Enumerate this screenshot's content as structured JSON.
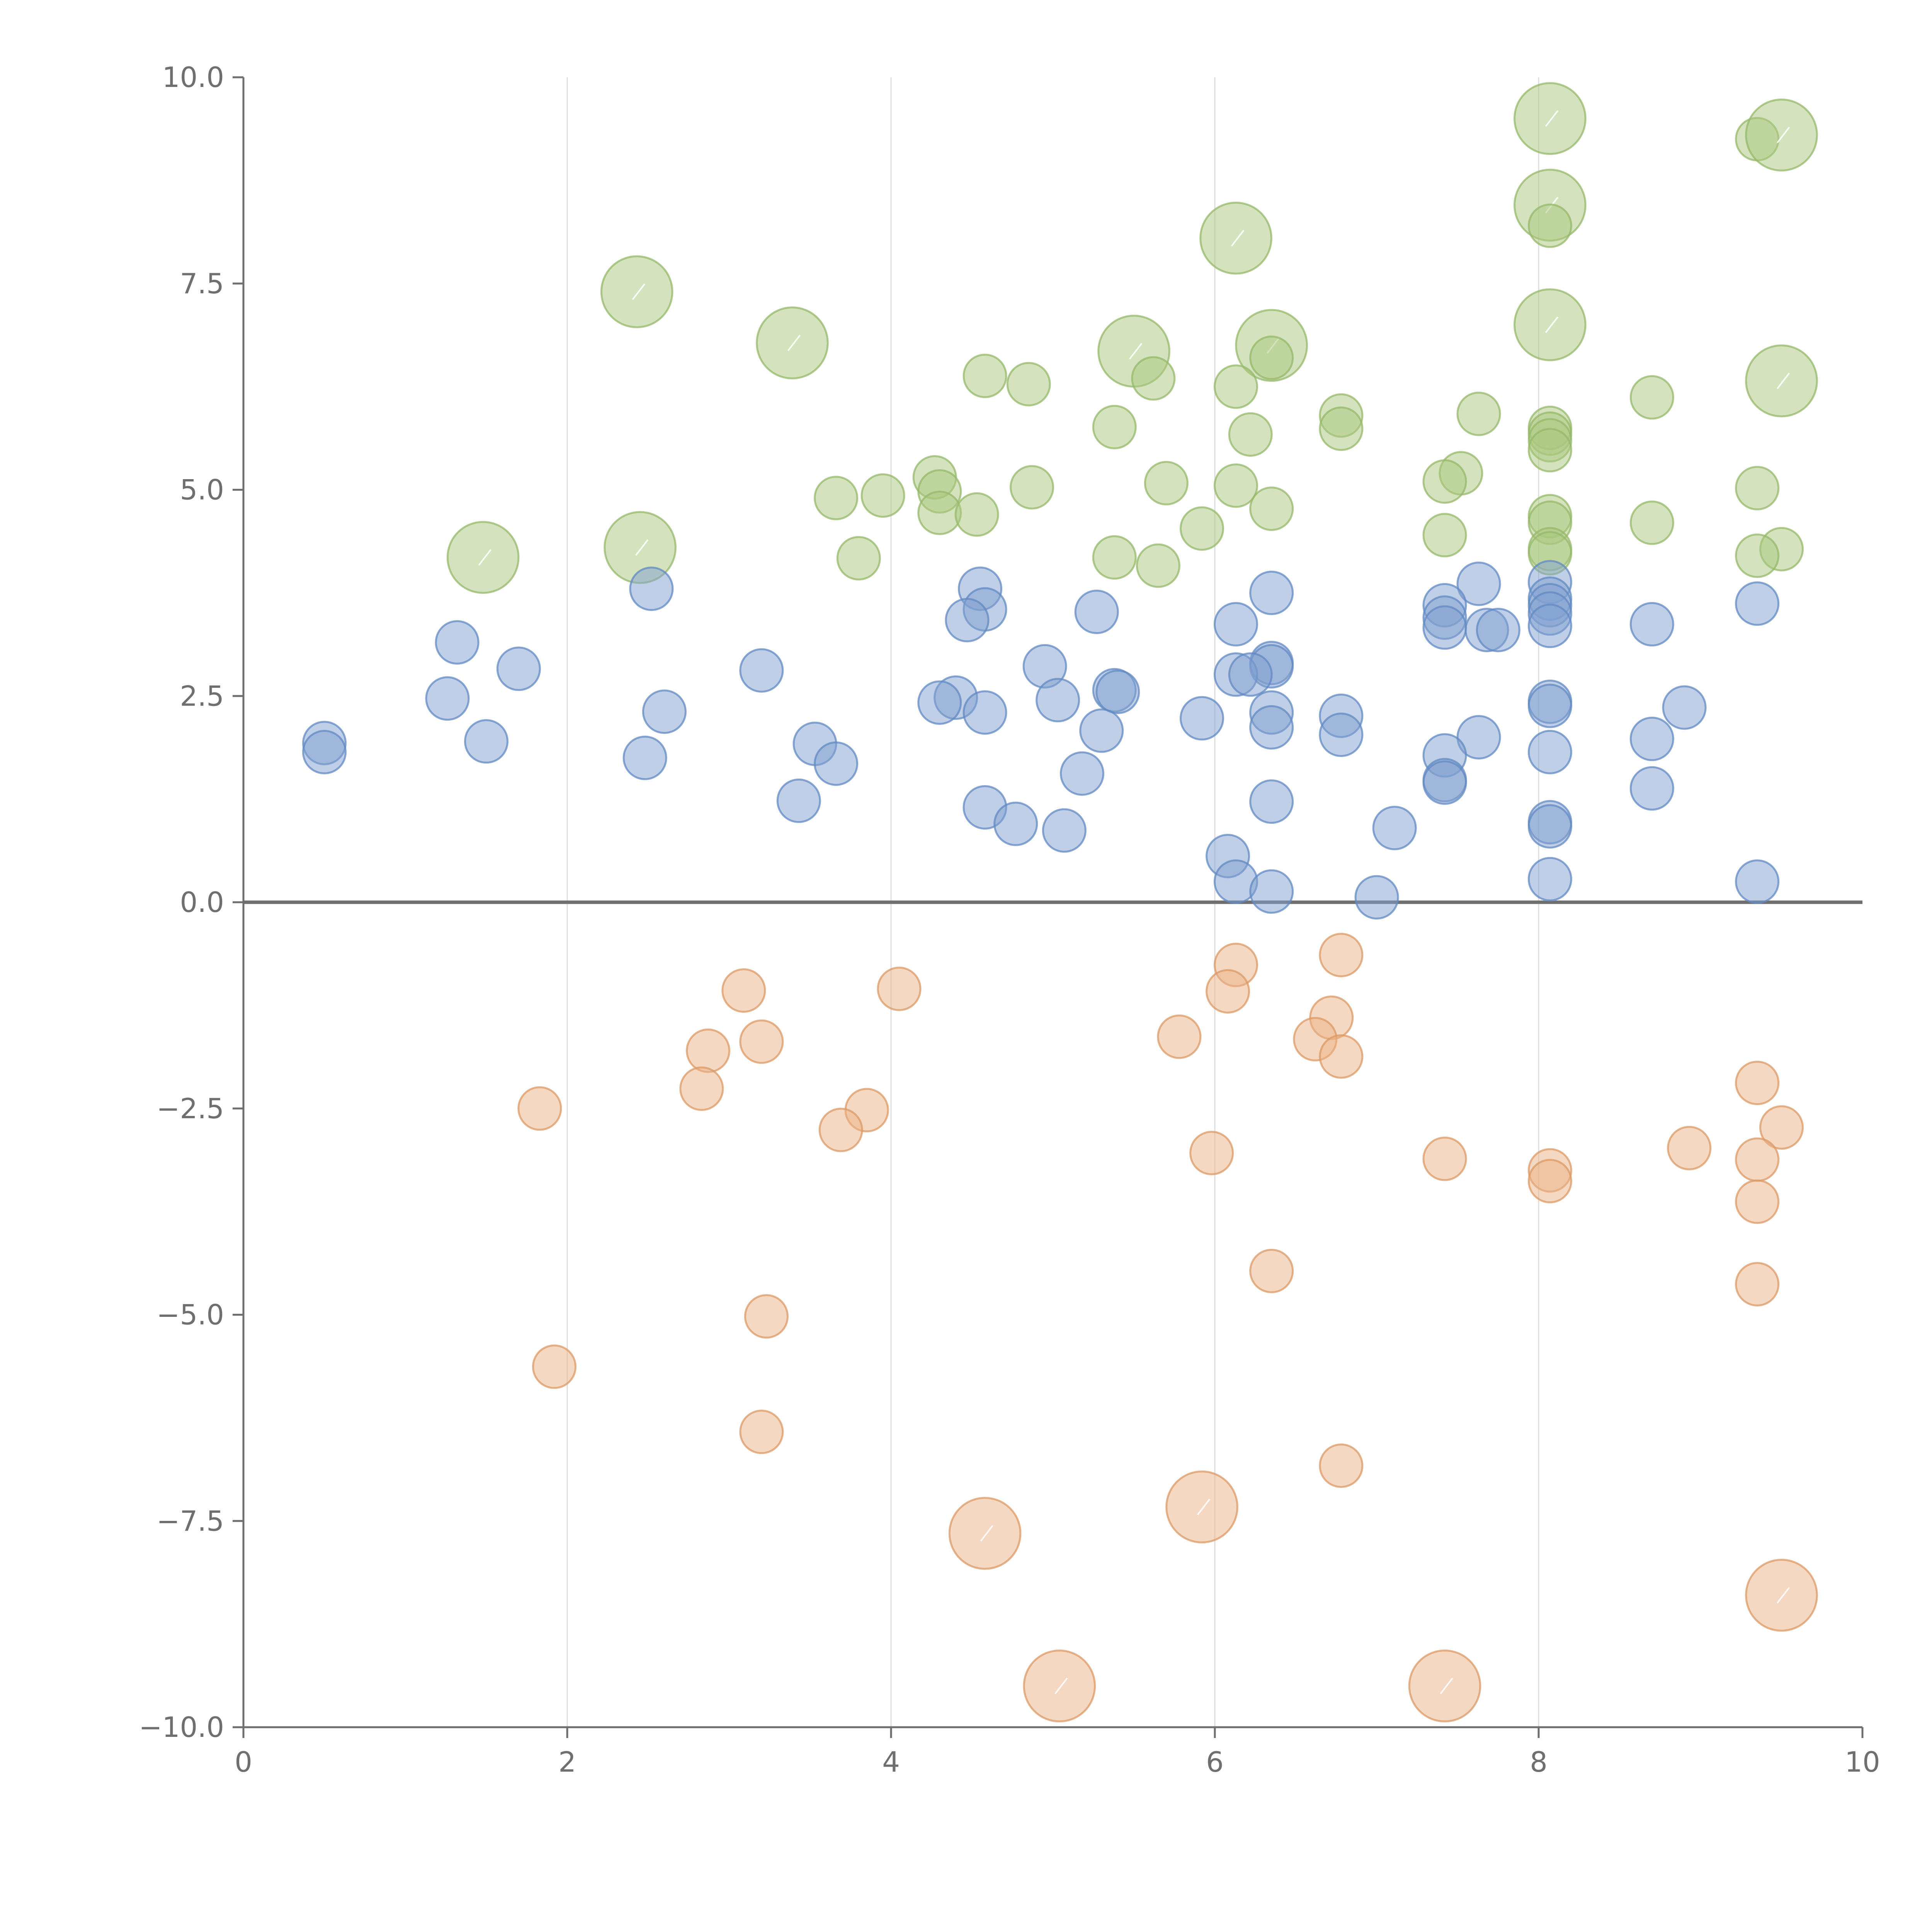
{
  "chart_data": {
    "type": "scatter",
    "title": "",
    "xlabel": "",
    "ylabel": "",
    "xlim": [
      0,
      10
    ],
    "ylim": [
      -10,
      10
    ],
    "grid": "vertical",
    "x_ticks": [
      {
        "value": 0,
        "label": "0"
      },
      {
        "value": 2,
        "label": "2"
      },
      {
        "value": 4,
        "label": "4"
      },
      {
        "value": 6,
        "label": "6"
      },
      {
        "value": 8,
        "label": "8"
      },
      {
        "value": 10,
        "label": "10"
      }
    ],
    "y_ticks": [
      {
        "value": 10,
        "label": "10.0"
      },
      {
        "value": 7.5,
        "label": "7.5"
      },
      {
        "value": 5,
        "label": "5.0"
      },
      {
        "value": 2.5,
        "label": "2.5"
      },
      {
        "value": 0,
        "label": "0.0"
      },
      {
        "value": -2.5,
        "label": "−2.5"
      },
      {
        "value": -5,
        "label": "−5.0"
      },
      {
        "value": -7.5,
        "label": "−7.5"
      },
      {
        "value": -10,
        "label": "−10.0"
      }
    ],
    "series": [
      {
        "name": "green",
        "color": "#a9c77e",
        "stroke": "#95b86a",
        "points": [
          {
            "x": 8.07,
            "y": 9.5,
            "size": 3
          },
          {
            "x": 9.35,
            "y": 9.25,
            "size": 1
          },
          {
            "x": 9.5,
            "y": 9.3,
            "size": 3
          },
          {
            "x": 8.07,
            "y": 8.45,
            "size": 3
          },
          {
            "x": 8.07,
            "y": 8.2,
            "size": 1
          },
          {
            "x": 6.13,
            "y": 8.05,
            "size": 3
          },
          {
            "x": 2.43,
            "y": 7.4,
            "size": 3
          },
          {
            "x": 8.07,
            "y": 7.0,
            "size": 3
          },
          {
            "x": 3.39,
            "y": 6.78,
            "size": 3
          },
          {
            "x": 6.35,
            "y": 6.75,
            "size": 3
          },
          {
            "x": 6.35,
            "y": 6.6,
            "size": 1
          },
          {
            "x": 5.5,
            "y": 6.68,
            "size": 3
          },
          {
            "x": 4.58,
            "y": 6.38,
            "size": 1
          },
          {
            "x": 5.62,
            "y": 6.35,
            "size": 1
          },
          {
            "x": 9.5,
            "y": 6.32,
            "size": 3
          },
          {
            "x": 4.85,
            "y": 6.28,
            "size": 1
          },
          {
            "x": 6.13,
            "y": 6.25,
            "size": 1
          },
          {
            "x": 8.7,
            "y": 6.12,
            "size": 1
          },
          {
            "x": 7.63,
            "y": 5.92,
            "size": 1
          },
          {
            "x": 6.78,
            "y": 5.9,
            "size": 1
          },
          {
            "x": 5.38,
            "y": 5.76,
            "size": 1
          },
          {
            "x": 6.78,
            "y": 5.74,
            "size": 1
          },
          {
            "x": 8.07,
            "y": 5.75,
            "size": 1
          },
          {
            "x": 8.07,
            "y": 5.68,
            "size": 1
          },
          {
            "x": 6.22,
            "y": 5.67,
            "size": 1
          },
          {
            "x": 8.07,
            "y": 5.6,
            "size": 1
          },
          {
            "x": 8.07,
            "y": 5.48,
            "size": 1
          },
          {
            "x": 7.52,
            "y": 5.2,
            "size": 1
          },
          {
            "x": 4.27,
            "y": 5.15,
            "size": 1
          },
          {
            "x": 7.42,
            "y": 5.1,
            "size": 1
          },
          {
            "x": 5.7,
            "y": 5.08,
            "size": 1
          },
          {
            "x": 6.13,
            "y": 5.05,
            "size": 1
          },
          {
            "x": 4.87,
            "y": 5.03,
            "size": 1
          },
          {
            "x": 9.35,
            "y": 5.02,
            "size": 1
          },
          {
            "x": 4.3,
            "y": 4.98,
            "size": 1
          },
          {
            "x": 3.95,
            "y": 4.93,
            "size": 1
          },
          {
            "x": 3.66,
            "y": 4.9,
            "size": 1
          },
          {
            "x": 6.35,
            "y": 4.77,
            "size": 1
          },
          {
            "x": 4.3,
            "y": 4.72,
            "size": 1
          },
          {
            "x": 4.53,
            "y": 4.7,
            "size": 1
          },
          {
            "x": 8.07,
            "y": 4.68,
            "size": 1
          },
          {
            "x": 8.07,
            "y": 4.6,
            "size": 1
          },
          {
            "x": 8.7,
            "y": 4.6,
            "size": 1
          },
          {
            "x": 5.92,
            "y": 4.53,
            "size": 1
          },
          {
            "x": 7.42,
            "y": 4.45,
            "size": 1
          },
          {
            "x": 2.45,
            "y": 4.3,
            "size": 3
          },
          {
            "x": 8.07,
            "y": 4.28,
            "size": 1
          },
          {
            "x": 9.5,
            "y": 4.28,
            "size": 1
          },
          {
            "x": 8.07,
            "y": 4.23,
            "size": 1
          },
          {
            "x": 9.35,
            "y": 4.2,
            "size": 1
          },
          {
            "x": 1.48,
            "y": 4.18,
            "size": 3
          },
          {
            "x": 3.8,
            "y": 4.17,
            "size": 1
          },
          {
            "x": 5.38,
            "y": 4.18,
            "size": 1
          },
          {
            "x": 5.65,
            "y": 4.08,
            "size": 1
          }
        ]
      },
      {
        "name": "blue",
        "color": "#7f9fd0",
        "stroke": "#6289c3",
        "points": [
          {
            "x": 8.07,
            "y": 3.88,
            "size": 1
          },
          {
            "x": 7.63,
            "y": 3.86,
            "size": 1
          },
          {
            "x": 2.52,
            "y": 3.8,
            "size": 1
          },
          {
            "x": 4.55,
            "y": 3.8,
            "size": 1
          },
          {
            "x": 6.35,
            "y": 3.75,
            "size": 1
          },
          {
            "x": 8.07,
            "y": 3.68,
            "size": 1
          },
          {
            "x": 8.07,
            "y": 3.6,
            "size": 1
          },
          {
            "x": 9.35,
            "y": 3.62,
            "size": 1
          },
          {
            "x": 7.42,
            "y": 3.6,
            "size": 1
          },
          {
            "x": 4.58,
            "y": 3.55,
            "size": 1
          },
          {
            "x": 5.27,
            "y": 3.52,
            "size": 1
          },
          {
            "x": 8.07,
            "y": 3.5,
            "size": 1
          },
          {
            "x": 7.42,
            "y": 3.45,
            "size": 1
          },
          {
            "x": 4.47,
            "y": 3.42,
            "size": 1
          },
          {
            "x": 6.13,
            "y": 3.37,
            "size": 1
          },
          {
            "x": 8.7,
            "y": 3.37,
            "size": 1
          },
          {
            "x": 8.07,
            "y": 3.35,
            "size": 1
          },
          {
            "x": 7.42,
            "y": 3.33,
            "size": 1
          },
          {
            "x": 7.68,
            "y": 3.3,
            "size": 1
          },
          {
            "x": 7.75,
            "y": 3.3,
            "size": 1
          },
          {
            "x": 1.32,
            "y": 3.15,
            "size": 1
          },
          {
            "x": 4.95,
            "y": 2.86,
            "size": 1
          },
          {
            "x": 6.35,
            "y": 2.9,
            "size": 1
          },
          {
            "x": 6.35,
            "y": 2.86,
            "size": 1
          },
          {
            "x": 1.7,
            "y": 2.83,
            "size": 1
          },
          {
            "x": 3.2,
            "y": 2.81,
            "size": 1
          },
          {
            "x": 6.13,
            "y": 2.76,
            "size": 1
          },
          {
            "x": 6.22,
            "y": 2.76,
            "size": 1
          },
          {
            "x": 5.38,
            "y": 2.57,
            "size": 1
          },
          {
            "x": 5.4,
            "y": 2.55,
            "size": 1
          },
          {
            "x": 4.4,
            "y": 2.48,
            "size": 1
          },
          {
            "x": 1.26,
            "y": 2.47,
            "size": 1
          },
          {
            "x": 5.03,
            "y": 2.45,
            "size": 1
          },
          {
            "x": 4.3,
            "y": 2.42,
            "size": 1
          },
          {
            "x": 8.07,
            "y": 2.43,
            "size": 1
          },
          {
            "x": 8.07,
            "y": 2.38,
            "size": 1
          },
          {
            "x": 8.9,
            "y": 2.36,
            "size": 1
          },
          {
            "x": 2.6,
            "y": 2.31,
            "size": 1
          },
          {
            "x": 4.58,
            "y": 2.3,
            "size": 1
          },
          {
            "x": 6.35,
            "y": 2.3,
            "size": 1
          },
          {
            "x": 6.78,
            "y": 2.26,
            "size": 1
          },
          {
            "x": 5.92,
            "y": 2.23,
            "size": 1
          },
          {
            "x": 6.35,
            "y": 2.12,
            "size": 1
          },
          {
            "x": 5.3,
            "y": 2.08,
            "size": 1
          },
          {
            "x": 6.78,
            "y": 2.03,
            "size": 1
          },
          {
            "x": 7.63,
            "y": 2.0,
            "size": 1
          },
          {
            "x": 8.7,
            "y": 1.98,
            "size": 1
          },
          {
            "x": 1.5,
            "y": 1.95,
            "size": 1
          },
          {
            "x": 0.5,
            "y": 1.93,
            "size": 1
          },
          {
            "x": 3.53,
            "y": 1.92,
            "size": 1
          },
          {
            "x": 0.5,
            "y": 1.82,
            "size": 1
          },
          {
            "x": 8.07,
            "y": 1.82,
            "size": 1
          },
          {
            "x": 7.42,
            "y": 1.78,
            "size": 1
          },
          {
            "x": 2.48,
            "y": 1.75,
            "size": 1
          },
          {
            "x": 3.66,
            "y": 1.68,
            "size": 1
          },
          {
            "x": 5.18,
            "y": 1.56,
            "size": 1
          },
          {
            "x": 7.42,
            "y": 1.48,
            "size": 1
          },
          {
            "x": 7.42,
            "y": 1.45,
            "size": 1
          },
          {
            "x": 8.7,
            "y": 1.38,
            "size": 1
          },
          {
            "x": 3.43,
            "y": 1.23,
            "size": 1
          },
          {
            "x": 6.35,
            "y": 1.22,
            "size": 1
          },
          {
            "x": 4.58,
            "y": 1.15,
            "size": 1
          },
          {
            "x": 8.07,
            "y": 0.97,
            "size": 1
          },
          {
            "x": 4.77,
            "y": 0.95,
            "size": 1
          },
          {
            "x": 8.07,
            "y": 0.92,
            "size": 1
          },
          {
            "x": 7.11,
            "y": 0.9,
            "size": 1
          },
          {
            "x": 5.07,
            "y": 0.87,
            "size": 1
          },
          {
            "x": 6.08,
            "y": 0.56,
            "size": 1
          },
          {
            "x": 8.07,
            "y": 0.28,
            "size": 1
          },
          {
            "x": 6.13,
            "y": 0.25,
            "size": 1
          },
          {
            "x": 9.35,
            "y": 0.25,
            "size": 1
          },
          {
            "x": 6.35,
            "y": 0.13,
            "size": 1
          },
          {
            "x": 7.0,
            "y": 0.06,
            "size": 1
          }
        ]
      },
      {
        "name": "orange",
        "color": "#e9b185",
        "stroke": "#dc9a66",
        "points": [
          {
            "x": 6.78,
            "y": -0.64,
            "size": 1
          },
          {
            "x": 6.13,
            "y": -0.76,
            "size": 1
          },
          {
            "x": 4.05,
            "y": -1.05,
            "size": 1
          },
          {
            "x": 3.09,
            "y": -1.07,
            "size": 1
          },
          {
            "x": 6.08,
            "y": -1.08,
            "size": 1
          },
          {
            "x": 6.72,
            "y": -1.4,
            "size": 1
          },
          {
            "x": 5.78,
            "y": -1.63,
            "size": 1
          },
          {
            "x": 6.62,
            "y": -1.66,
            "size": 1
          },
          {
            "x": 3.2,
            "y": -1.69,
            "size": 1
          },
          {
            "x": 2.87,
            "y": -1.8,
            "size": 1
          },
          {
            "x": 6.78,
            "y": -1.87,
            "size": 1
          },
          {
            "x": 9.35,
            "y": -2.19,
            "size": 1
          },
          {
            "x": 2.83,
            "y": -2.26,
            "size": 1
          },
          {
            "x": 1.83,
            "y": -2.5,
            "size": 1
          },
          {
            "x": 3.85,
            "y": -2.52,
            "size": 1
          },
          {
            "x": 9.5,
            "y": -2.73,
            "size": 1
          },
          {
            "x": 3.69,
            "y": -2.76,
            "size": 1
          },
          {
            "x": 8.93,
            "y": -2.98,
            "size": 1
          },
          {
            "x": 5.98,
            "y": -3.04,
            "size": 1
          },
          {
            "x": 7.42,
            "y": -3.11,
            "size": 1
          },
          {
            "x": 9.35,
            "y": -3.12,
            "size": 1
          },
          {
            "x": 8.07,
            "y": -3.25,
            "size": 1
          },
          {
            "x": 8.07,
            "y": -3.38,
            "size": 1
          },
          {
            "x": 9.35,
            "y": -3.63,
            "size": 1
          },
          {
            "x": 6.35,
            "y": -4.47,
            "size": 1
          },
          {
            "x": 9.35,
            "y": -4.63,
            "size": 1
          },
          {
            "x": 3.23,
            "y": -5.02,
            "size": 1
          },
          {
            "x": 1.92,
            "y": -5.63,
            "size": 1
          },
          {
            "x": 3.2,
            "y": -6.42,
            "size": 1
          },
          {
            "x": 6.78,
            "y": -6.83,
            "size": 1
          },
          {
            "x": 5.92,
            "y": -7.33,
            "size": 3
          },
          {
            "x": 4.58,
            "y": -7.65,
            "size": 3
          },
          {
            "x": 9.5,
            "y": -8.4,
            "size": 3
          },
          {
            "x": 5.04,
            "y": -9.5,
            "size": 3
          },
          {
            "x": 7.42,
            "y": -9.5,
            "size": 3
          }
        ]
      }
    ]
  }
}
